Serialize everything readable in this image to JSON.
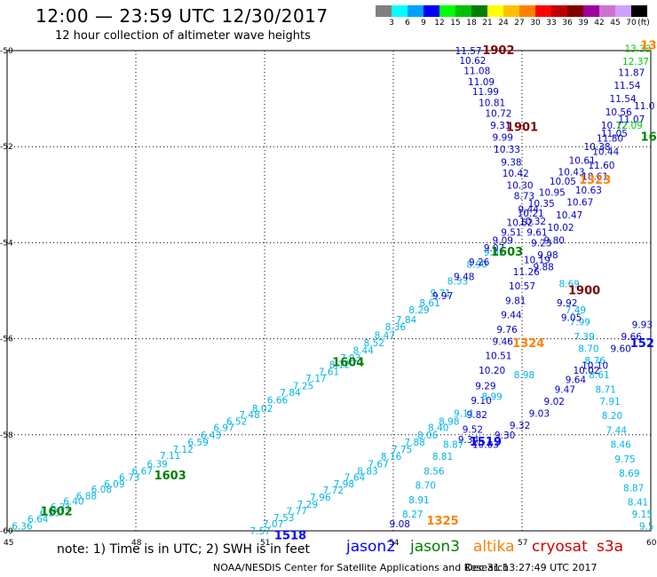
{
  "header": {
    "title": "12:00  —  23:59  UTC  12/30/2017",
    "subtitle": "12 hour collection of altimeter wave heights"
  },
  "legend": {
    "colors": [
      "#808080",
      "#00ffff",
      "#00a0ff",
      "#0000ff",
      "#00ff00",
      "#00c000",
      "#008000",
      "#ffff00",
      "#ffc000",
      "#ff8000",
      "#ff0000",
      "#c00000",
      "#800000",
      "#a000a0",
      "#d070d0",
      "#d0a0ff",
      "#000000"
    ],
    "labels": [
      "3",
      "6",
      "9",
      "12",
      "15",
      "18",
      "21",
      "24",
      "27",
      "30",
      "33",
      "36",
      "39",
      "42",
      "45",
      "70",
      "(ft)"
    ]
  },
  "axes": {
    "lon_ticks": [
      "45",
      "48",
      "51",
      "54",
      "57",
      "60"
    ],
    "lat_ticks": [
      "-50",
      "-52",
      "-54",
      "-56",
      "-58",
      "-60"
    ]
  },
  "missions": [
    {
      "name": "jason2",
      "color": "#0000ff"
    },
    {
      "name": "jason3",
      "color": "#008000"
    },
    {
      "name": "altika",
      "color": "#ff8000"
    },
    {
      "name": "cryosat",
      "color": "#d00000"
    },
    {
      "name": "s3a",
      "color": "#d00000"
    }
  ],
  "footer": {
    "note": "note:  1) Time is in UTC;  2) SWH is in feet",
    "credit": "NOAA/NESDIS Center for Satellite Applications and Research",
    "timestamp": "Dec 31 13:27:49 UTC 2017"
  },
  "track_labels": [
    {
      "id": "1902",
      "color": "#800000",
      "lon": 56.45,
      "lat": -50.0
    },
    {
      "id": "1901",
      "color": "#800000",
      "lon": 57.0,
      "lat": -51.6
    },
    {
      "id": "1323",
      "color": "#ff8000",
      "lon": 58.7,
      "lat": -52.7
    },
    {
      "id": "1603",
      "color": "#008000",
      "lon": 56.65,
      "lat": -54.2
    },
    {
      "id": "1900",
      "color": "#800000",
      "lon": 58.45,
      "lat": -55.0
    },
    {
      "id": "1324",
      "color": "#ff8000",
      "lon": 57.15,
      "lat": -56.1
    },
    {
      "id": "1604",
      "color": "#008000",
      "lon": 52.95,
      "lat": -56.5
    },
    {
      "id": "1519",
      "color": "#0000ff",
      "lon": 56.15,
      "lat": -58.15
    },
    {
      "id": "1603",
      "color": "#008000",
      "lon": 48.8,
      "lat": -58.85
    },
    {
      "id": "1602",
      "color": "#008000",
      "lon": 46.15,
      "lat": -59.6
    },
    {
      "id": "1325",
      "color": "#ff8000",
      "lon": 55.15,
      "lat": -59.8
    },
    {
      "id": "1518",
      "color": "#0000ff",
      "lon": 51.6,
      "lat": -60.1
    },
    {
      "id": "152",
      "color": "#0000ff",
      "lon": 59.8,
      "lat": -56.1
    },
    {
      "id": "16",
      "color": "#008000",
      "lon": 59.95,
      "lat": -51.8
    },
    {
      "id": "13",
      "color": "#ff8000",
      "lon": 59.95,
      "lat": -49.9
    }
  ],
  "tracks": [
    {
      "name": "jason3-1602-1603-1604",
      "color": "#00b4e6",
      "points": [
        {
          "lon": 45.35,
          "lat": -59.9,
          "v": "6.36"
        },
        {
          "lon": 45.72,
          "lat": -59.75,
          "v": "6.64"
        },
        {
          "lon": 46.0,
          "lat": -59.62,
          "v": "6.25"
        },
        {
          "lon": 46.25,
          "lat": -59.5,
          "v": "6.31"
        },
        {
          "lon": 46.55,
          "lat": -59.38,
          "v": "6.40"
        },
        {
          "lon": 46.85,
          "lat": -59.27,
          "v": "6.88"
        },
        {
          "lon": 47.2,
          "lat": -59.13,
          "v": "6.08"
        },
        {
          "lon": 47.5,
          "lat": -59.02,
          "v": "6.09"
        },
        {
          "lon": 47.85,
          "lat": -58.88,
          "v": "6.73"
        },
        {
          "lon": 48.15,
          "lat": -58.75,
          "v": "6.67"
        },
        {
          "lon": 48.5,
          "lat": -58.6,
          "v": "6.39"
        },
        {
          "lon": 48.8,
          "lat": -58.43,
          "v": "7.11"
        },
        {
          "lon": 49.1,
          "lat": -58.3,
          "v": "7.12"
        },
        {
          "lon": 49.45,
          "lat": -58.15,
          "v": "6.59"
        },
        {
          "lon": 49.75,
          "lat": -58.0,
          "v": "6.43"
        },
        {
          "lon": 50.05,
          "lat": -57.85,
          "v": "6.97"
        },
        {
          "lon": 50.35,
          "lat": -57.72,
          "v": "6.52"
        },
        {
          "lon": 50.65,
          "lat": -57.58,
          "v": "7.48"
        },
        {
          "lon": 50.95,
          "lat": -57.45,
          "v": "8.02"
        },
        {
          "lon": 51.3,
          "lat": -57.27,
          "v": "6.66"
        },
        {
          "lon": 51.6,
          "lat": -57.12,
          "v": "7.84"
        },
        {
          "lon": 51.9,
          "lat": -56.98,
          "v": "7.25"
        },
        {
          "lon": 52.2,
          "lat": -56.82,
          "v": "7.17"
        },
        {
          "lon": 52.5,
          "lat": -56.68,
          "v": "7.61"
        },
        {
          "lon": 52.75,
          "lat": -56.53,
          "v": "8.12"
        },
        {
          "lon": 53.0,
          "lat": -56.4,
          "v": "7.93"
        },
        {
          "lon": 53.3,
          "lat": -56.24,
          "v": "8.44"
        },
        {
          "lon": 53.55,
          "lat": -56.08,
          "v": "8.52"
        },
        {
          "lon": 53.8,
          "lat": -55.92,
          "v": "8.47"
        },
        {
          "lon": 54.05,
          "lat": -55.75,
          "v": "8.36"
        },
        {
          "lon": 54.3,
          "lat": -55.6,
          "v": "7.84"
        },
        {
          "lon": 54.6,
          "lat": -55.4,
          "v": "8.29"
        },
        {
          "lon": 54.85,
          "lat": -55.25,
          "v": "8.61"
        },
        {
          "lon": 55.1,
          "lat": -55.05,
          "v": "9.71"
        },
        {
          "lon": 55.5,
          "lat": -54.8,
          "v": "8.53"
        },
        {
          "lon": 55.95,
          "lat": -54.45,
          "v": "8.90"
        },
        {
          "lon": 56.35,
          "lat": -54.2,
          "v": "9.02"
        }
      ]
    },
    {
      "name": "jason3-1603-blue",
      "color": "#0000c8",
      "points": [
        {
          "lon": 55.15,
          "lat": -55.1,
          "v": "9.97"
        },
        {
          "lon": 55.65,
          "lat": -54.7,
          "v": "9.48"
        },
        {
          "lon": 56.0,
          "lat": -54.4,
          "v": "9.26"
        },
        {
          "lon": 56.35,
          "lat": -54.1,
          "v": "9.07"
        },
        {
          "lon": 56.55,
          "lat": -53.95,
          "v": "9.09"
        },
        {
          "lon": 56.75,
          "lat": -53.78,
          "v": "9.51"
        },
        {
          "lon": 56.95,
          "lat": -53.58,
          "v": "10.52"
        },
        {
          "lon": 57.2,
          "lat": -53.38,
          "v": "10.21"
        },
        {
          "lon": 57.45,
          "lat": -53.18,
          "v": "10.35"
        },
        {
          "lon": 57.7,
          "lat": -52.95,
          "v": "10.95"
        },
        {
          "lon": 57.95,
          "lat": -52.72,
          "v": "10.05"
        },
        {
          "lon": 58.15,
          "lat": -52.52,
          "v": "10.43"
        },
        {
          "lon": 58.4,
          "lat": -52.28,
          "v": "10.61"
        },
        {
          "lon": 58.75,
          "lat": -52.0,
          "v": "10.38"
        },
        {
          "lon": 59.15,
          "lat": -51.72,
          "v": "11.05"
        },
        {
          "lon": 59.55,
          "lat": -51.42,
          "v": "11.07"
        },
        {
          "lon": 59.85,
          "lat": -51.15,
          "v": "11.0"
        }
      ]
    },
    {
      "name": "cryosat-1902-1901",
      "color": "#0000c8",
      "points": [
        {
          "lon": 55.75,
          "lat": -50.0,
          "v": "11.57"
        },
        {
          "lon": 55.85,
          "lat": -50.2,
          "v": "10.62"
        },
        {
          "lon": 55.95,
          "lat": -50.42,
          "v": "11.08"
        },
        {
          "lon": 56.05,
          "lat": -50.65,
          "v": "11.09"
        },
        {
          "lon": 56.15,
          "lat": -50.85,
          "v": "11.99"
        },
        {
          "lon": 56.3,
          "lat": -51.08,
          "v": "10.81"
        },
        {
          "lon": 56.45,
          "lat": -51.3,
          "v": "10.72"
        },
        {
          "lon": 56.5,
          "lat": -51.55,
          "v": "9.31"
        },
        {
          "lon": 56.55,
          "lat": -51.8,
          "v": "9.99"
        },
        {
          "lon": 56.65,
          "lat": -52.05,
          "v": "10.33"
        },
        {
          "lon": 56.75,
          "lat": -52.32,
          "v": "9.38"
        },
        {
          "lon": 56.85,
          "lat": -52.55,
          "v": "10.42"
        },
        {
          "lon": 56.95,
          "lat": -52.8,
          "v": "10.30"
        },
        {
          "lon": 57.05,
          "lat": -53.02,
          "v": "8.73"
        },
        {
          "lon": 57.15,
          "lat": -53.3,
          "v": "9.44"
        },
        {
          "lon": 57.25,
          "lat": -53.55,
          "v": "10.32"
        },
        {
          "lon": 57.35,
          "lat": -53.78,
          "v": "9.61"
        },
        {
          "lon": 57.45,
          "lat": -54.0,
          "v": "9.23"
        }
      ]
    },
    {
      "name": "cryosat-1900",
      "color": "#0000c8",
      "points": [
        {
          "lon": 57.35,
          "lat": -54.35,
          "v": "10.19"
        },
        {
          "lon": 57.1,
          "lat": -54.6,
          "v": "11.26"
        },
        {
          "lon": 57.0,
          "lat": -54.9,
          "v": "10.57"
        },
        {
          "lon": 56.85,
          "lat": -55.2,
          "v": "9.81"
        },
        {
          "lon": 56.75,
          "lat": -55.5,
          "v": "9.44"
        },
        {
          "lon": 56.65,
          "lat": -55.8,
          "v": "9.76"
        },
        {
          "lon": 56.55,
          "lat": -56.05,
          "v": "9.46"
        },
        {
          "lon": 56.45,
          "lat": -56.35,
          "v": "10.51"
        },
        {
          "lon": 56.3,
          "lat": -56.65,
          "v": "10.20"
        },
        {
          "lon": 56.15,
          "lat": -56.98,
          "v": "9.29"
        },
        {
          "lon": 56.05,
          "lat": -57.28,
          "v": "9.10"
        },
        {
          "lon": 55.95,
          "lat": -57.58,
          "v": "9.82"
        },
        {
          "lon": 55.85,
          "lat": -57.88,
          "v": "9.52"
        },
        {
          "lon": 55.75,
          "lat": -58.1,
          "v": "9.34"
        }
      ]
    },
    {
      "name": "altika-1323-1324",
      "color": "#00b4e6",
      "points": [
        {
          "lon": 58.1,
          "lat": -54.85,
          "v": "8.69"
        },
        {
          "lon": 58.25,
          "lat": -55.4,
          "v": "7.49"
        },
        {
          "lon": 58.35,
          "lat": -55.65,
          "v": "7.99"
        },
        {
          "lon": 58.45,
          "lat": -55.95,
          "v": "7.39"
        },
        {
          "lon": 58.55,
          "lat": -56.2,
          "v": "8.70"
        },
        {
          "lon": 58.7,
          "lat": -56.45,
          "v": "8.76"
        },
        {
          "lon": 58.8,
          "lat": -56.75,
          "v": "8.61"
        },
        {
          "lon": 58.95,
          "lat": -57.05,
          "v": "8.71"
        },
        {
          "lon": 59.05,
          "lat": -57.3,
          "v": "7.91"
        },
        {
          "lon": 59.1,
          "lat": -57.6,
          "v": "8.20"
        },
        {
          "lon": 59.2,
          "lat": -57.9,
          "v": "7.44"
        },
        {
          "lon": 59.3,
          "lat": -58.2,
          "v": "8.46"
        },
        {
          "lon": 59.4,
          "lat": -58.5,
          "v": "9.75"
        },
        {
          "lon": 59.5,
          "lat": -58.8,
          "v": "8.69"
        },
        {
          "lon": 59.6,
          "lat": -59.1,
          "v": "8.87"
        },
        {
          "lon": 59.7,
          "lat": -59.4,
          "v": "8.41"
        },
        {
          "lon": 59.8,
          "lat": -59.65,
          "v": "9.15"
        },
        {
          "lon": 59.9,
          "lat": -59.9,
          "v": "9.5"
        }
      ]
    },
    {
      "name": "altika-1324-blue",
      "color": "#0000c8",
      "points": [
        {
          "lon": 58.05,
          "lat": -55.25,
          "v": "9.92"
        },
        {
          "lon": 58.15,
          "lat": -55.55,
          "v": "9.05"
        },
        {
          "lon": 58.7,
          "lat": -56.55,
          "v": "10.10"
        },
        {
          "lon": 58.5,
          "lat": -56.65,
          "v": "10.02"
        },
        {
          "lon": 58.25,
          "lat": -56.85,
          "v": "9.64"
        },
        {
          "lon": 58.0,
          "lat": -57.05,
          "v": "9.47"
        },
        {
          "lon": 57.75,
          "lat": -57.3,
          "v": "9.02"
        },
        {
          "lon": 57.4,
          "lat": -57.55,
          "v": "9.03"
        },
        {
          "lon": 56.95,
          "lat": -57.8,
          "v": "9.32"
        },
        {
          "lon": 56.6,
          "lat": -58.0,
          "v": "9.30"
        },
        {
          "lon": 56.15,
          "lat": -58.2,
          "v": "10.03"
        },
        {
          "lon": 59.3,
          "lat": -56.2,
          "v": "9.60"
        },
        {
          "lon": 59.55,
          "lat": -55.95,
          "v": "9.66"
        },
        {
          "lon": 59.8,
          "lat": -55.7,
          "v": "9.93"
        }
      ]
    },
    {
      "name": "jason2-1518-1519",
      "color": "#00b4e6",
      "points": [
        {
          "lon": 50.9,
          "lat": -60.0,
          "v": "7.57"
        },
        {
          "lon": 51.2,
          "lat": -59.85,
          "v": "7.07"
        },
        {
          "lon": 51.45,
          "lat": -59.72,
          "v": "7.53"
        },
        {
          "lon": 51.75,
          "lat": -59.58,
          "v": "7.77"
        },
        {
          "lon": 52.0,
          "lat": -59.45,
          "v": "7.29"
        },
        {
          "lon": 52.3,
          "lat": -59.3,
          "v": "7.96"
        },
        {
          "lon": 52.6,
          "lat": -59.15,
          "v": "7.72"
        },
        {
          "lon": 52.85,
          "lat": -59.02,
          "v": "7.98"
        },
        {
          "lon": 53.1,
          "lat": -58.88,
          "v": "7.64"
        },
        {
          "lon": 53.4,
          "lat": -58.75,
          "v": "8.83"
        },
        {
          "lon": 53.65,
          "lat": -58.6,
          "v": "7.67"
        },
        {
          "lon": 53.95,
          "lat": -58.45,
          "v": "8.16"
        },
        {
          "lon": 54.2,
          "lat": -58.3,
          "v": "7.75"
        },
        {
          "lon": 54.5,
          "lat": -58.15,
          "v": "7.88"
        },
        {
          "lon": 54.8,
          "lat": -58.0,
          "v": "8.06"
        },
        {
          "lon": 55.05,
          "lat": -57.85,
          "v": "8.40"
        },
        {
          "lon": 55.3,
          "lat": -57.72,
          "v": "8.98"
        },
        {
          "lon": 55.65,
          "lat": -57.55,
          "v": "9.11"
        },
        {
          "lon": 56.3,
          "lat": -57.2,
          "v": "8.99"
        },
        {
          "lon": 57.05,
          "lat": -56.75,
          "v": "8.98"
        }
      ]
    },
    {
      "name": "altika-1325",
      "color": "#00b4e6",
      "points": [
        {
          "lon": 55.4,
          "lat": -58.2,
          "v": "8.87"
        },
        {
          "lon": 55.15,
          "lat": -58.45,
          "v": "8.81"
        },
        {
          "lon": 54.95,
          "lat": -58.75,
          "v": "8.56"
        },
        {
          "lon": 54.75,
          "lat": -59.05,
          "v": "8.70"
        },
        {
          "lon": 54.6,
          "lat": -59.35,
          "v": "8.91"
        },
        {
          "lon": 54.45,
          "lat": -59.65,
          "v": "8.27"
        }
      ]
    },
    {
      "name": "altika-1325-blue",
      "color": "#0000c8",
      "points": [
        {
          "lon": 54.15,
          "lat": -59.85,
          "v": "9.08"
        }
      ]
    },
    {
      "name": "s3a-north",
      "color": "#0000c8",
      "points": [
        {
          "lon": 59.55,
          "lat": -50.45,
          "v": "11.87"
        },
        {
          "lon": 59.45,
          "lat": -50.72,
          "v": "11.54"
        },
        {
          "lon": 59.35,
          "lat": -51.0,
          "v": "11.54"
        },
        {
          "lon": 59.25,
          "lat": -51.28,
          "v": "10.56"
        },
        {
          "lon": 59.15,
          "lat": -51.55,
          "v": "10.72"
        },
        {
          "lon": 59.05,
          "lat": -51.82,
          "v": "11.80"
        },
        {
          "lon": 58.95,
          "lat": -52.1,
          "v": "10.44"
        },
        {
          "lon": 58.85,
          "lat": -52.38,
          "v": "11.60"
        },
        {
          "lon": 58.7,
          "lat": -52.62,
          "v": "10.61"
        },
        {
          "lon": 58.55,
          "lat": -52.9,
          "v": "10.63"
        },
        {
          "lon": 58.35,
          "lat": -53.15,
          "v": "10.67"
        },
        {
          "lon": 58.1,
          "lat": -53.42,
          "v": "10.47"
        },
        {
          "lon": 57.9,
          "lat": -53.68,
          "v": "10.02"
        },
        {
          "lon": 57.75,
          "lat": -53.95,
          "v": "9.80"
        },
        {
          "lon": 57.6,
          "lat": -54.25,
          "v": "9.98"
        },
        {
          "lon": 57.5,
          "lat": -54.5,
          "v": "9.88"
        }
      ]
    },
    {
      "name": "s3a-north-green",
      "color": "#00d000",
      "points": [
        {
          "lon": 59.7,
          "lat": -49.95,
          "v": "13.33"
        },
        {
          "lon": 59.65,
          "lat": -50.22,
          "v": "12.37"
        },
        {
          "lon": 59.5,
          "lat": -51.55,
          "v": "12.09"
        }
      ]
    }
  ]
}
